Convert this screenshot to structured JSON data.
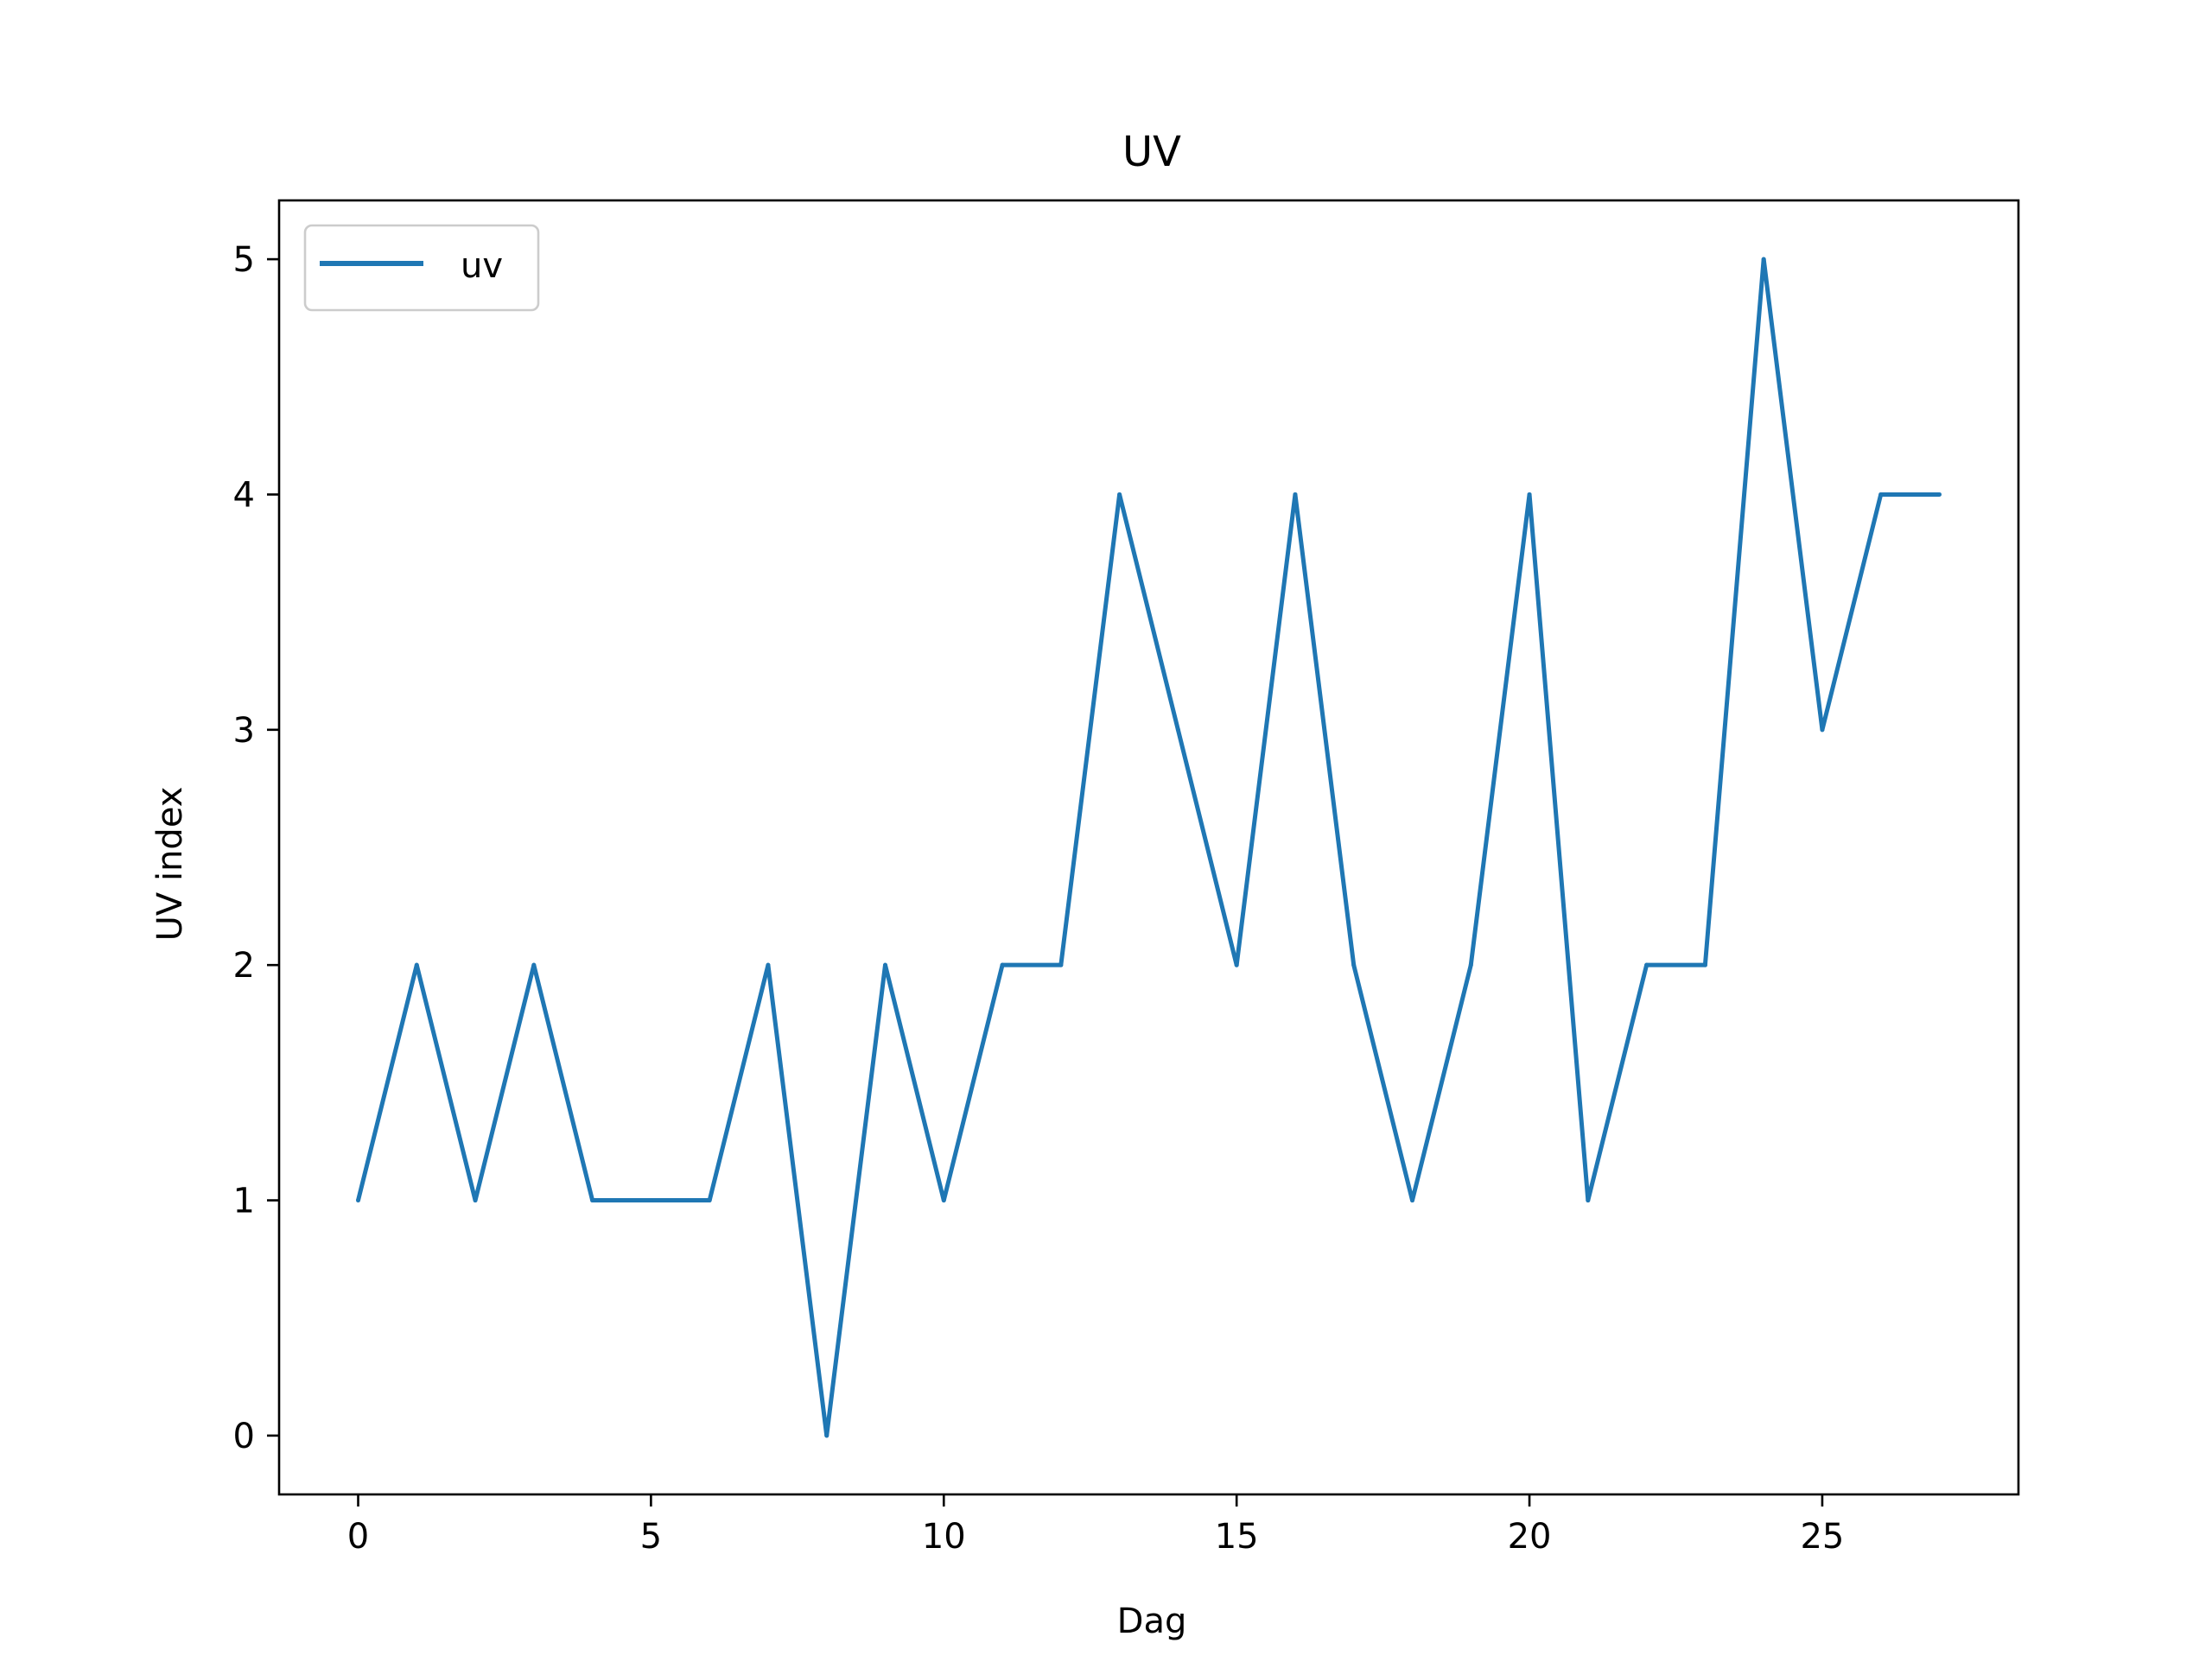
{
  "chart_data": {
    "type": "line",
    "title": "UV",
    "xlabel": "Dag",
    "ylabel": "UV index",
    "xlim": [
      -1.35,
      28.35
    ],
    "ylim": [
      -0.25,
      5.25
    ],
    "xticks": [
      0,
      5,
      10,
      15,
      20,
      25
    ],
    "yticks": [
      0,
      1,
      2,
      3,
      4,
      5
    ],
    "x": [
      0,
      1,
      2,
      3,
      4,
      5,
      6,
      7,
      8,
      9,
      10,
      11,
      12,
      13,
      14,
      15,
      16,
      17,
      18,
      19,
      20,
      21,
      22,
      23,
      24,
      25,
      26,
      27
    ],
    "series": [
      {
        "name": "uv",
        "color": "#1f77b4",
        "values": [
          1,
          2,
          1,
          2,
          1,
          1,
          1,
          2,
          0,
          2,
          1,
          2,
          2,
          4,
          3,
          2,
          4,
          2,
          1,
          2,
          4,
          1,
          2,
          2,
          5,
          3,
          4,
          4
        ]
      }
    ],
    "legend": {
      "position": "top-left",
      "entries": [
        "uv"
      ]
    },
    "grid": false
  }
}
